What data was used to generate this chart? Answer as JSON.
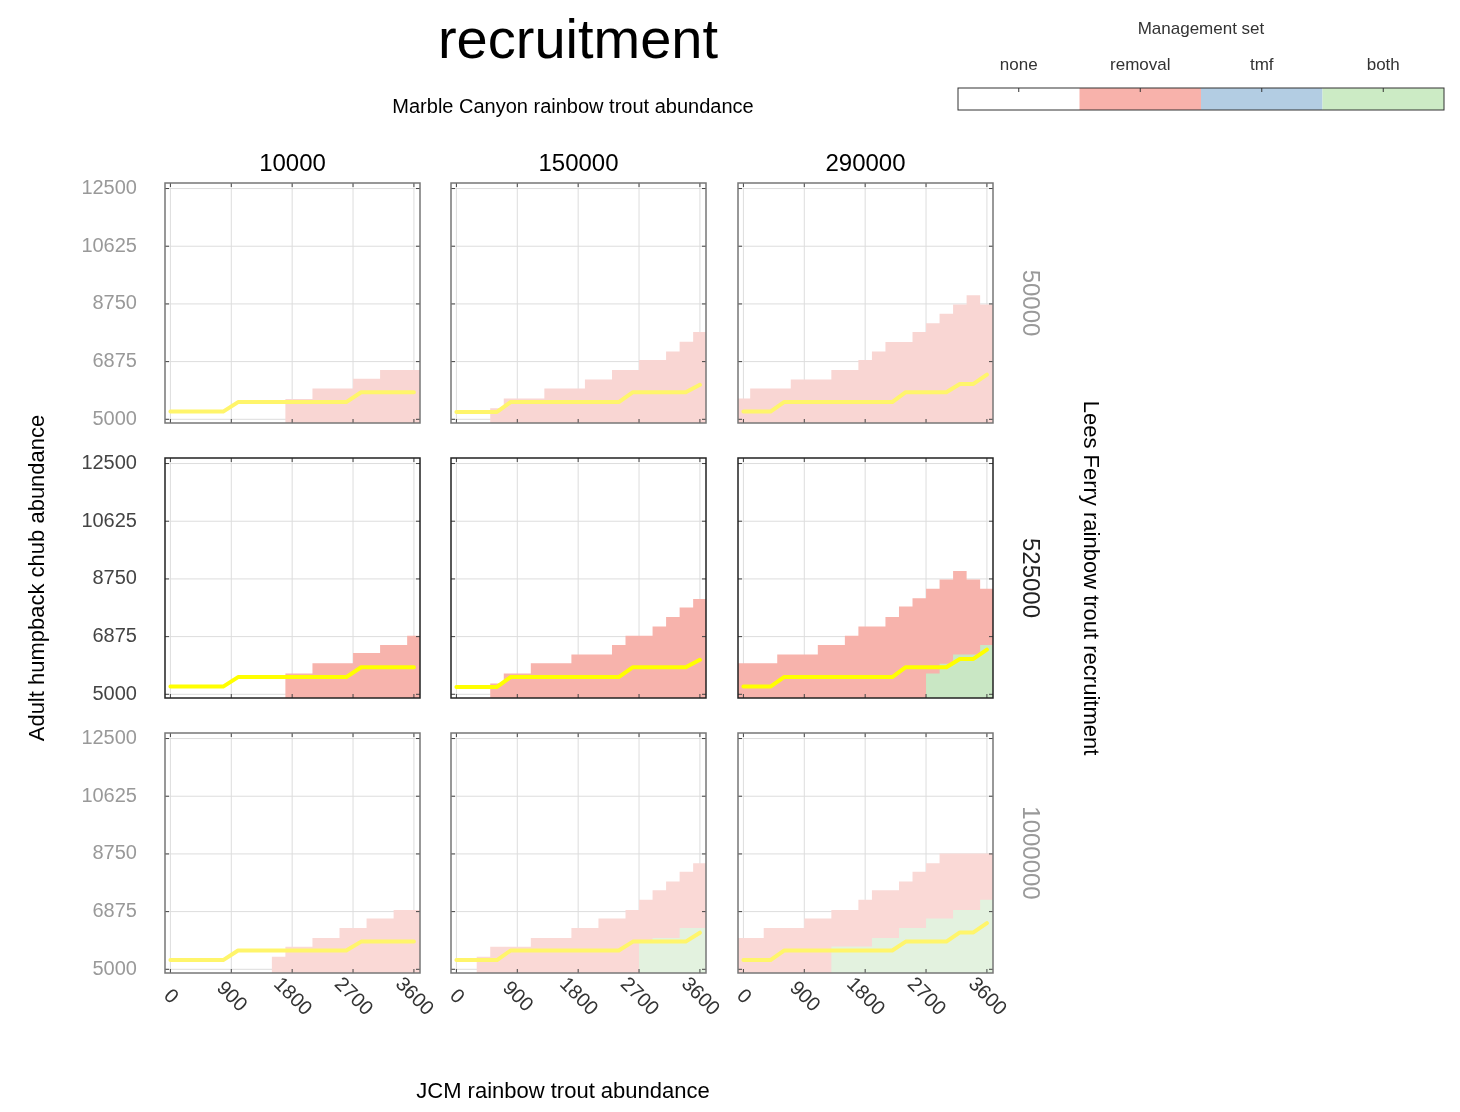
{
  "chart_data": [
    {
      "type": "other",
      "title": "recruitment",
      "subtitle": "Marble Canyon rainbow trout abundance",
      "xlabel": "JCM rainbow trout abundance",
      "ylabel": "Adult humpback chub abundance",
      "y2label": "Lees Ferry rainbow trout recruitment",
      "legend_title": "Management set",
      "categories": [
        "none",
        "removal",
        "tmf",
        "both"
      ],
      "colors": [
        "#ffffff",
        "#f8b2ab",
        "#b3cde3",
        "#ccebc5"
      ]
    },
    {
      "type": "area",
      "title": "10000",
      "xlim": [
        -80,
        3690
      ],
      "ylim": [
        4880,
        12680
      ],
      "xticks": [
        0,
        900,
        1800,
        2700,
        3600
      ],
      "yticks": [
        5000,
        6875,
        8750,
        10625,
        12500
      ],
      "tick_labels": "y",
      "grid": true,
      "series": [
        {
          "type": "area",
          "color": "#f9d6d3",
          "x": [
            1700,
            2100,
            2100,
            2700,
            2700,
            3100,
            3100,
            3690
          ],
          "values": [
            5660,
            5660,
            6000,
            6000,
            6320,
            6320,
            6600,
            6600
          ]
        },
        {
          "type": "line",
          "color": "#fff56b",
          "x": [
            0,
            780,
            1000,
            2600,
            2820,
            3600
          ],
          "values": [
            5250,
            5250,
            5560,
            5560,
            5880,
            5880
          ]
        }
      ]
    },
    {
      "type": "area",
      "title": "150000",
      "xlim": [
        -80,
        3690
      ],
      "ylim": [
        4880,
        12680
      ],
      "xticks": [
        0,
        900,
        1800,
        2700,
        3600
      ],
      "yticks": [
        5000,
        6875,
        8750,
        10625,
        12500
      ],
      "tick_labels": false,
      "grid": true,
      "series": [
        {
          "type": "area",
          "color": "#f9d6d3",
          "x": [
            500,
            700,
            700,
            1300,
            1300,
            1900,
            1900,
            2300,
            2300,
            2700,
            2700,
            3100,
            3100,
            3300,
            3300,
            3500,
            3500,
            3690
          ],
          "values": [
            5360,
            5360,
            5680,
            5680,
            6000,
            6000,
            6290,
            6290,
            6600,
            6600,
            6930,
            6930,
            7200,
            7200,
            7520,
            7520,
            7840,
            7840
          ]
        },
        {
          "type": "line",
          "color": "#fff56b",
          "x": [
            0,
            600,
            800,
            2400,
            2610,
            3390,
            3600
          ],
          "values": [
            5240,
            5240,
            5560,
            5560,
            5880,
            5880,
            6120
          ]
        }
      ]
    },
    {
      "type": "area",
      "title": "290000",
      "y2label": "50000",
      "xlim": [
        -80,
        3690
      ],
      "ylim": [
        4880,
        12680
      ],
      "xticks": [
        0,
        900,
        1800,
        2700,
        3600
      ],
      "yticks": [
        5000,
        6875,
        8750,
        10625,
        12500
      ],
      "tick_labels": false,
      "grid": true,
      "series": [
        {
          "type": "area",
          "color": "#f9d6d3",
          "x": [
            -80,
            100,
            100,
            700,
            700,
            1300,
            1300,
            1700,
            1700,
            1900,
            1900,
            2100,
            2100,
            2500,
            2500,
            2700,
            2700,
            2900,
            2900,
            3100,
            3100,
            3300,
            3300,
            3500,
            3500,
            3690
          ],
          "values": [
            5680,
            5680,
            6000,
            6000,
            6290,
            6290,
            6600,
            6600,
            6930,
            6930,
            7200,
            7200,
            7510,
            7510,
            7840,
            7840,
            8120,
            8120,
            8430,
            8430,
            8730,
            8730,
            9030,
            9030,
            8730,
            8730
          ]
        },
        {
          "type": "line",
          "color": "#fff56b",
          "x": [
            0,
            400,
            600,
            2200,
            2400,
            3000,
            3200,
            3400,
            3600
          ],
          "values": [
            5250,
            5250,
            5560,
            5560,
            5880,
            5880,
            6150,
            6150,
            6450
          ]
        }
      ]
    },
    {
      "type": "area",
      "xlim": [
        -80,
        3690
      ],
      "ylim": [
        4880,
        12680
      ],
      "xticks": [
        0,
        900,
        1800,
        2700,
        3600
      ],
      "yticks": [
        5000,
        6875,
        8750,
        10625,
        12500
      ],
      "tick_labels": "y",
      "grid": true,
      "series": [
        {
          "type": "area",
          "color": "#f7b3ac",
          "x": [
            1700,
            2100,
            2100,
            2700,
            2700,
            3100,
            3100,
            3500,
            3500,
            3690
          ],
          "values": [
            5680,
            5680,
            6010,
            6010,
            6340,
            6340,
            6600,
            6600,
            6900,
            6900
          ]
        },
        {
          "type": "line",
          "color": "#ffff00",
          "x": [
            0,
            780,
            1000,
            2600,
            2820,
            3600
          ],
          "values": [
            5250,
            5250,
            5560,
            5560,
            5880,
            5880
          ]
        }
      ]
    },
    {
      "type": "area",
      "xlim": [
        -80,
        3690
      ],
      "ylim": [
        4880,
        12680
      ],
      "xticks": [
        0,
        900,
        1800,
        2700,
        3600
      ],
      "yticks": [
        5000,
        6875,
        8750,
        10625,
        12500
      ],
      "tick_labels": false,
      "grid": true,
      "series": [
        {
          "type": "area",
          "color": "#f7b3ac",
          "x": [
            500,
            700,
            700,
            1100,
            1100,
            1700,
            1700,
            2300,
            2300,
            2500,
            2500,
            2900,
            2900,
            3100,
            3100,
            3300,
            3300,
            3500,
            3500,
            3690
          ],
          "values": [
            5350,
            5350,
            5680,
            5680,
            6010,
            6010,
            6290,
            6290,
            6600,
            6600,
            6900,
            6900,
            7200,
            7200,
            7510,
            7510,
            7820,
            7820,
            8100,
            8100
          ]
        },
        {
          "type": "line",
          "color": "#ffff00",
          "x": [
            0,
            600,
            800,
            2400,
            2610,
            3390,
            3600
          ],
          "values": [
            5240,
            5240,
            5560,
            5560,
            5880,
            5880,
            6120
          ]
        }
      ]
    },
    {
      "type": "area",
      "y2label": "525000",
      "xlim": [
        -80,
        3690
      ],
      "ylim": [
        4880,
        12680
      ],
      "xticks": [
        0,
        900,
        1800,
        2700,
        3600
      ],
      "yticks": [
        5000,
        6875,
        8750,
        10625,
        12500
      ],
      "tick_labels": false,
      "grid": true,
      "series": [
        {
          "type": "area",
          "color": "#f7b3ac",
          "x": [
            -80,
            500,
            500,
            1100,
            1100,
            1500,
            1500,
            1700,
            1700,
            2100,
            2100,
            2300,
            2300,
            2500,
            2500,
            2700,
            2700,
            2900,
            2900,
            3100,
            3100,
            3300,
            3300,
            3500,
            3500,
            3690
          ],
          "values": [
            6010,
            6010,
            6290,
            6290,
            6600,
            6600,
            6900,
            6900,
            7200,
            7200,
            7510,
            7510,
            7850,
            7850,
            8120,
            8120,
            8430,
            8430,
            8730,
            8730,
            9010,
            9010,
            8730,
            8730,
            8430,
            8430
          ]
        },
        {
          "type": "area",
          "color": "#c9e7c4",
          "x": [
            2700,
            2900,
            2900,
            3100,
            3100,
            3500,
            3500,
            3690
          ],
          "values": [
            5680,
            5680,
            5990,
            5990,
            6290,
            6290,
            6600,
            6600
          ]
        },
        {
          "type": "line",
          "color": "#ffff00",
          "x": [
            0,
            400,
            600,
            2200,
            2400,
            3000,
            3200,
            3400,
            3600
          ],
          "values": [
            5250,
            5250,
            5560,
            5560,
            5880,
            5880,
            6150,
            6150,
            6450
          ]
        }
      ]
    },
    {
      "type": "area",
      "xlim": [
        -80,
        3690
      ],
      "ylim": [
        4880,
        12680
      ],
      "xticks": [
        0,
        900,
        1800,
        2700,
        3600
      ],
      "yticks": [
        5000,
        6875,
        8750,
        10625,
        12500
      ],
      "grid": true,
      "series": [
        {
          "type": "area",
          "color": "#fad9d6",
          "x": [
            1500,
            1700,
            1700,
            2100,
            2100,
            2500,
            2500,
            2900,
            2900,
            3300,
            3300,
            3690
          ],
          "values": [
            5410,
            5410,
            5730,
            5730,
            6020,
            6020,
            6340,
            6340,
            6650,
            6650,
            6930,
            6930
          ]
        },
        {
          "type": "line",
          "color": "#fff56b",
          "x": [
            0,
            780,
            1000,
            2600,
            2820,
            3600
          ],
          "values": [
            5300,
            5300,
            5610,
            5610,
            5900,
            5900
          ]
        }
      ]
    },
    {
      "type": "area",
      "xlim": [
        -80,
        3690
      ],
      "ylim": [
        4880,
        12680
      ],
      "xticks": [
        0,
        900,
        1800,
        2700,
        3600
      ],
      "yticks": [
        5000,
        6875,
        8750,
        10625,
        12500
      ],
      "tick_labels": "x",
      "grid": true,
      "series": [
        {
          "type": "area",
          "color": "#fad9d6",
          "x": [
            300,
            500,
            500,
            1100,
            1100,
            1700,
            1700,
            2100,
            2100,
            2500,
            2500,
            2700,
            2700,
            2900,
            2900,
            3100,
            3100,
            3300,
            3300,
            3500,
            3500,
            3690
          ],
          "values": [
            5410,
            5410,
            5730,
            5730,
            6020,
            6020,
            6340,
            6340,
            6650,
            6650,
            6930,
            6930,
            7260,
            7260,
            7570,
            7570,
            7850,
            7850,
            8170,
            8170,
            8450,
            8450
          ]
        },
        {
          "type": "area",
          "color": "#e3f2df",
          "x": [
            2700,
            2900,
            2900,
            3300,
            3300,
            3690
          ],
          "values": [
            5900,
            5900,
            6020,
            6020,
            6340,
            6340
          ]
        },
        {
          "type": "line",
          "color": "#fff56b",
          "x": [
            0,
            600,
            800,
            2400,
            2610,
            3390,
            3600
          ],
          "values": [
            5300,
            5300,
            5610,
            5610,
            5900,
            5900,
            6190
          ]
        }
      ]
    },
    {
      "type": "area",
      "y2label": "1000000",
      "xlim": [
        -80,
        3690
      ],
      "ylim": [
        4880,
        12680
      ],
      "xticks": [
        0,
        900,
        1800,
        2700,
        3600
      ],
      "yticks": [
        5000,
        6875,
        8750,
        10625,
        12500
      ],
      "tick_labels": "x",
      "grid": true,
      "series": [
        {
          "type": "area",
          "color": "#fad9d6",
          "x": [
            -80,
            300,
            300,
            900,
            900,
            1300,
            1300,
            1700,
            1700,
            1900,
            1900,
            2300,
            2300,
            2500,
            2500,
            2700,
            2700,
            2900,
            2900,
            3690
          ],
          "values": [
            6020,
            6020,
            6340,
            6340,
            6650,
            6650,
            6930,
            6930,
            7260,
            7260,
            7570,
            7570,
            7850,
            7850,
            8170,
            8170,
            8450,
            8450,
            8760,
            8760
          ]
        },
        {
          "type": "area",
          "color": "#e3f2df",
          "x": [
            1300,
            1900,
            1900,
            2300,
            2300,
            2700,
            2700,
            3100,
            3100,
            3500,
            3500,
            3690
          ],
          "values": [
            5740,
            5740,
            6020,
            6020,
            6340,
            6340,
            6650,
            6650,
            6930,
            6930,
            7260,
            7260
          ]
        },
        {
          "type": "line",
          "color": "#fff56b",
          "x": [
            0,
            400,
            600,
            2200,
            2400,
            3000,
            3200,
            3400,
            3600
          ],
          "values": [
            5300,
            5300,
            5610,
            5610,
            5900,
            5900,
            6200,
            6200,
            6500
          ]
        }
      ]
    }
  ]
}
